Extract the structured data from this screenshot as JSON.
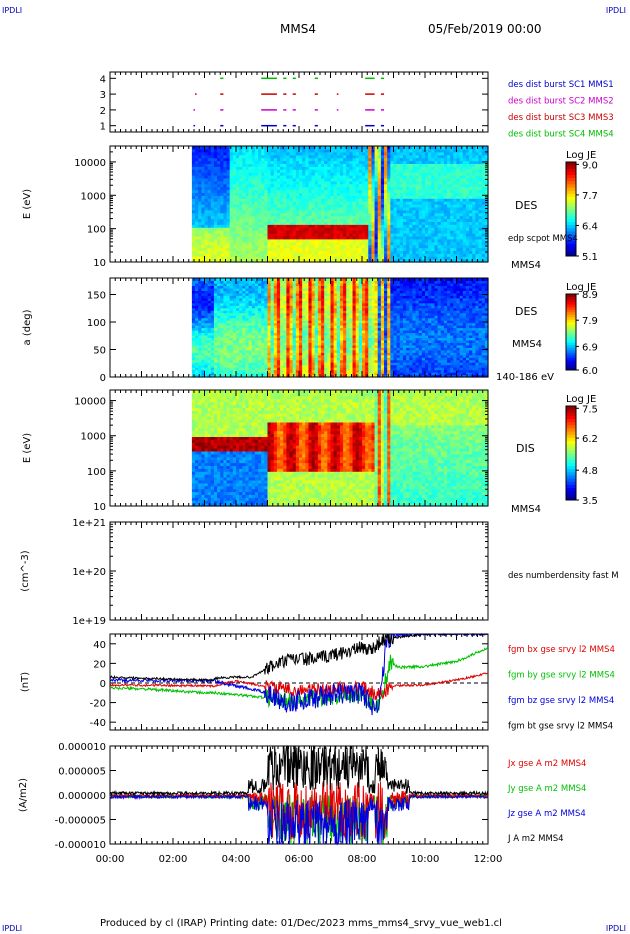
{
  "header": {
    "corner_label": "IPDLI",
    "spacecraft": "MMS4",
    "datetime": "05/Feb/2019 00:00"
  },
  "footer": {
    "text": "Produced by cl (IRAP)    Printing date: 01/Dec/2023    mms_mms4_srvy_vue_web1.cl"
  },
  "chart_data": [
    {
      "type": "scatter",
      "panel": "availability",
      "yticks": [
        1,
        2,
        3,
        4
      ],
      "ylim": [
        0.6,
        4.4
      ],
      "legend": [
        {
          "text": "des dist burst SC1 MMS1",
          "color": "#0000cc"
        },
        {
          "text": "des dist burst SC2 MMS2",
          "color": "#cc00cc"
        },
        {
          "text": "des dist burst SC3 MMS3",
          "color": "#cc0000"
        },
        {
          "text": "des dist burst SC4 MMS4",
          "color": "#00bb00"
        }
      ],
      "segments": [
        {
          "y": 4,
          "color": "#00bb00",
          "x": [
            [
              3.5,
              3.6
            ],
            [
              4.8,
              5.3
            ],
            [
              5.5,
              5.6
            ],
            [
              5.8,
              5.9
            ],
            [
              6.5,
              6.6
            ],
            [
              8.1,
              8.4
            ],
            [
              8.6,
              8.7
            ]
          ]
        },
        {
          "y": 3,
          "color": "#cc0000",
          "x": [
            [
              2.7,
              2.75
            ],
            [
              3.5,
              3.6
            ],
            [
              4.8,
              5.3
            ],
            [
              5.5,
              5.6
            ],
            [
              5.8,
              5.9
            ],
            [
              6.5,
              6.6
            ],
            [
              7.2,
              7.25
            ],
            [
              8.1,
              8.4
            ],
            [
              8.6,
              8.7
            ]
          ]
        },
        {
          "y": 2,
          "color": "#cc00cc",
          "x": [
            [
              2.65,
              2.7
            ],
            [
              3.5,
              3.6
            ],
            [
              4.8,
              5.3
            ],
            [
              5.5,
              5.6
            ],
            [
              5.8,
              5.9
            ],
            [
              6.5,
              6.6
            ],
            [
              7.2,
              7.25
            ],
            [
              8.1,
              8.4
            ],
            [
              8.6,
              8.7
            ]
          ]
        },
        {
          "y": 1,
          "color": "#0000cc",
          "x": [
            [
              2.65,
              2.7
            ],
            [
              3.5,
              3.6
            ],
            [
              4.8,
              5.3
            ],
            [
              5.5,
              5.6
            ],
            [
              5.8,
              5.9
            ],
            [
              6.5,
              6.6
            ],
            [
              8.1,
              8.4
            ],
            [
              8.6,
              8.7
            ]
          ]
        }
      ]
    },
    {
      "type": "heatmap",
      "panel": "des-energy",
      "ylabel": "E (eV)",
      "yscale": "log",
      "ylim": [
        10,
        30000
      ],
      "ytick_labels": [
        "10",
        "100",
        "1000",
        "10000"
      ],
      "right_labels": [
        "DES",
        "edp scpot MMS4",
        "MMS4"
      ],
      "colorbar": {
        "title": "Log JE",
        "min": 5.1,
        "max": 9.1,
        "tick_labels": [
          "9.0",
          "7.7",
          "6.4",
          "5.1"
        ]
      },
      "data_start_hour": 2.65
    },
    {
      "type": "heatmap",
      "panel": "des-pitch-angle",
      "ylabel": "a (deg)",
      "ylim": [
        0,
        180
      ],
      "ytick_labels": [
        "0",
        "50",
        "100",
        "150"
      ],
      "right_labels": [
        "DES",
        "MMS4",
        "140-186 eV"
      ],
      "colorbar": {
        "title": "Log JE",
        "min": 6.0,
        "max": 8.9,
        "tick_labels": [
          "8.9",
          "7.9",
          "6.9",
          "6.0"
        ]
      },
      "data_start_hour": 2.65
    },
    {
      "type": "heatmap",
      "panel": "dis-energy",
      "ylabel": "E (eV)",
      "yscale": "log",
      "ylim": [
        10,
        20000
      ],
      "ytick_labels": [
        "10",
        "100",
        "1000",
        "10000"
      ],
      "right_labels": [
        "DIS",
        "MMS4"
      ],
      "colorbar": {
        "title": "Log JE",
        "min": 3.5,
        "max": 7.6,
        "tick_labels": [
          "7.5",
          "6.2",
          "4.8",
          "3.5"
        ]
      },
      "data_start_hour": 2.65
    },
    {
      "type": "line",
      "panel": "density",
      "ylabel": "(cm^-3)",
      "yscale": "log",
      "ylim": [
        1e+19,
        1e+21
      ],
      "ytick_labels": [
        "1e+19",
        "1e+20",
        "1e+21"
      ],
      "series": [
        {
          "name": "des numberdensity fast M",
          "color": "#000000",
          "values": []
        }
      ]
    },
    {
      "type": "line",
      "panel": "magnetic-field",
      "ylabel": "(nT)",
      "ylim": [
        -48,
        50
      ],
      "ytick_labels": [
        "-40",
        "-20",
        "0",
        "20",
        "40"
      ],
      "series": [
        {
          "name": "fgm bx gse srvy l2 MMS4",
          "color": "#e00000"
        },
        {
          "name": "fgm by gse srvy l2 MMS4",
          "color": "#00c000"
        },
        {
          "name": "fgm bz gse srvy l2 MMS4",
          "color": "#0000e0"
        },
        {
          "name": "fgm bt gse srvy l2 MMS4",
          "color": "#000000"
        }
      ],
      "bt_profile": [
        [
          0,
          6
        ],
        [
          1,
          5
        ],
        [
          2,
          4
        ],
        [
          3,
          3
        ],
        [
          3.3,
          3
        ],
        [
          3.35,
          5
        ],
        [
          4,
          6
        ],
        [
          4.5,
          6
        ],
        [
          5,
          15
        ],
        [
          5.5,
          22
        ],
        [
          6,
          25
        ],
        [
          6.5,
          24
        ],
        [
          7,
          28
        ],
        [
          7.5,
          32
        ],
        [
          8,
          36
        ],
        [
          8.3,
          34
        ],
        [
          8.5,
          40
        ],
        [
          8.7,
          44
        ],
        [
          9,
          46
        ],
        [
          9.5,
          48
        ],
        [
          10,
          50
        ]
      ],
      "bx_profile": [
        [
          0,
          -2
        ],
        [
          3.3,
          -3
        ],
        [
          4,
          2
        ],
        [
          5,
          -4
        ],
        [
          6,
          -8
        ],
        [
          7,
          -6
        ],
        [
          8,
          -5
        ],
        [
          8.5,
          -12
        ],
        [
          9,
          -3
        ],
        [
          10,
          -2
        ],
        [
          11,
          3
        ],
        [
          12,
          10
        ]
      ],
      "by_profile": [
        [
          0,
          -5
        ],
        [
          1,
          -6
        ],
        [
          2,
          -8
        ],
        [
          3,
          -10
        ],
        [
          3.3,
          -10
        ],
        [
          4,
          -12
        ],
        [
          5,
          -15
        ],
        [
          6,
          -18
        ],
        [
          7,
          -14
        ],
        [
          8,
          -10
        ],
        [
          8.5,
          -25
        ],
        [
          8.9,
          20
        ],
        [
          9.2,
          16
        ],
        [
          10,
          17
        ],
        [
          11,
          22
        ],
        [
          12,
          36
        ]
      ],
      "bz_profile": [
        [
          0,
          3
        ],
        [
          3.3,
          2
        ],
        [
          4,
          -3
        ],
        [
          5,
          -10
        ],
        [
          5.5,
          -20
        ],
        [
          6,
          -18
        ],
        [
          7,
          -12
        ],
        [
          8,
          -10
        ],
        [
          8.5,
          -30
        ],
        [
          8.8,
          45
        ],
        [
          9,
          48
        ],
        [
          9.5,
          50
        ]
      ]
    },
    {
      "type": "line",
      "panel": "current-density",
      "ylabel": "(A/m2)",
      "ylim": [
        -1e-05,
        1e-05
      ],
      "ytick_labels": [
        "-0.000010",
        "-0.000005",
        "0.000000",
        "0.000005",
        "0.000010"
      ],
      "xlim": [
        0,
        12
      ],
      "xtick_labels": [
        "00:00",
        "02:00",
        "04:00",
        "06:00",
        "08:00",
        "10:00",
        "12:00"
      ],
      "series": [
        {
          "name": "Jx gse A m2 MMS4",
          "color": "#e00000"
        },
        {
          "name": "Jy gse A m2 MMS4",
          "color": "#00c000"
        },
        {
          "name": "Jz gse A m2 MMS4",
          "color": "#0000e0"
        },
        {
          "name": "J A m2 MMS4",
          "color": "#000000"
        }
      ]
    }
  ]
}
